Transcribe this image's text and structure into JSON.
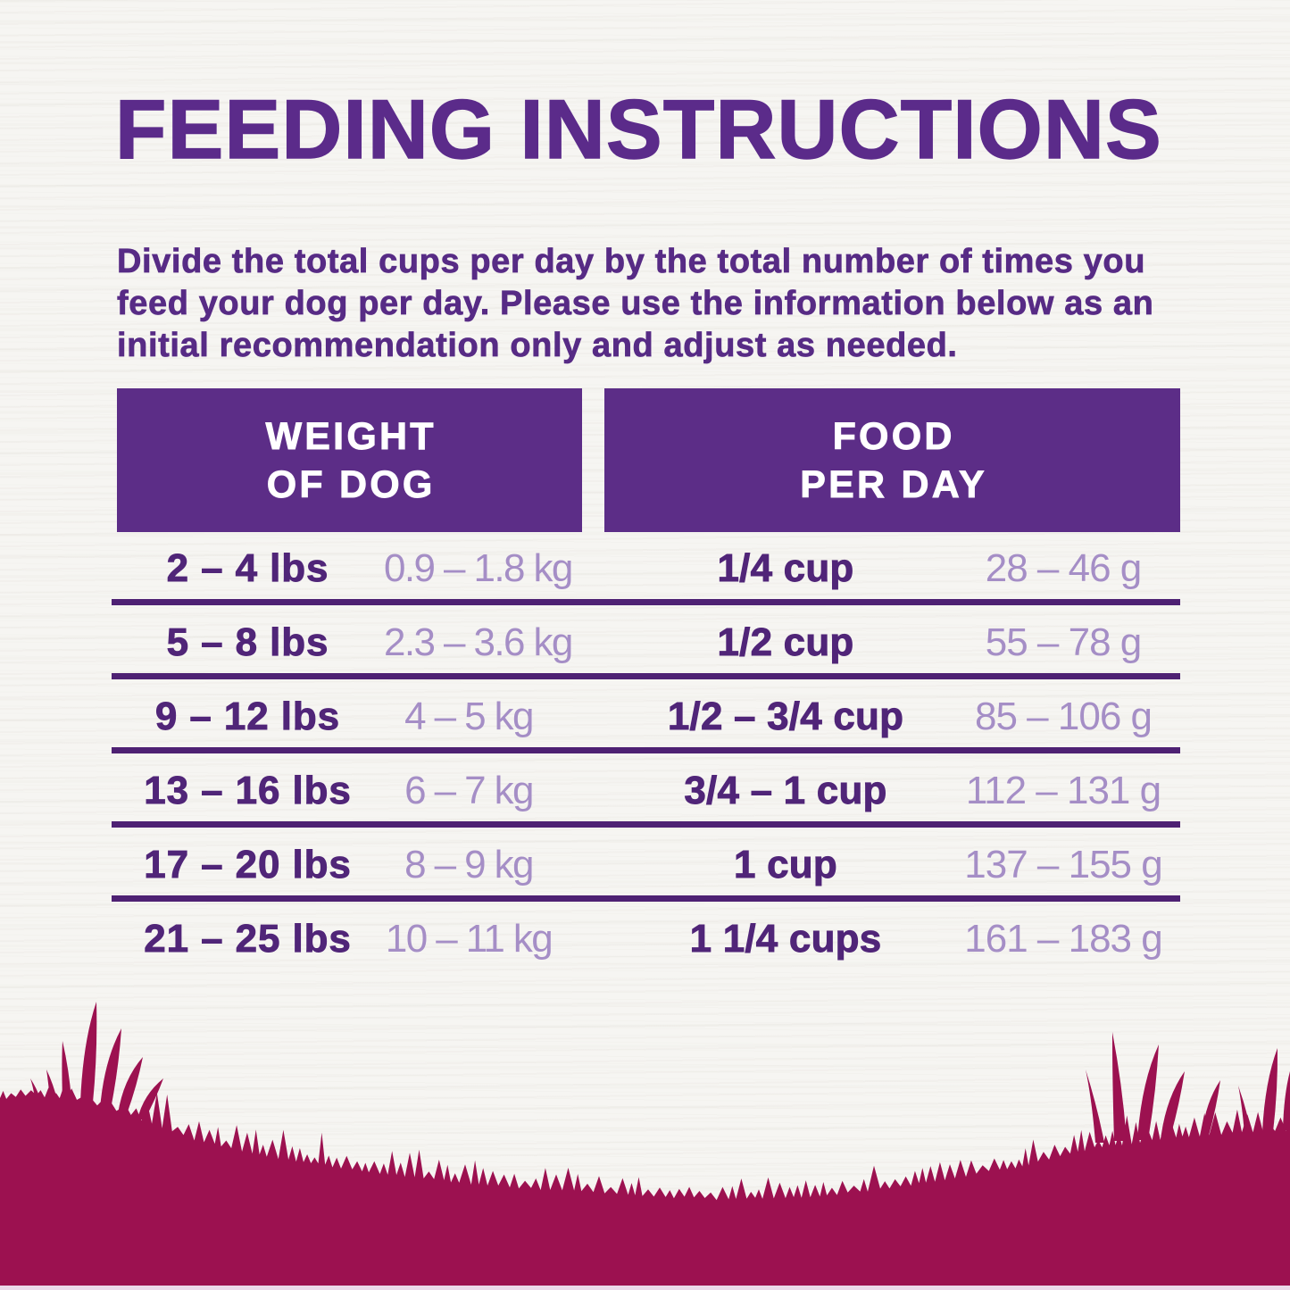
{
  "title": "FEEDING INSTRUCTIONS",
  "intro": {
    "line1": "Divide the total cups per day by the total number of times you",
    "line2": "feed your dog per day. Please use the information below as an",
    "line3": "initial recommendation only and adjust as needed."
  },
  "table": {
    "weight_header": {
      "line1": "WEIGHT",
      "line2": "OF DOG"
    },
    "food_header": {
      "line1": "FOOD",
      "line2": "PER DAY"
    },
    "rows": [
      {
        "lbs": "2 – 4 lbs",
        "kg": "0.9 – 1.8 kg",
        "cups": "1/4 cup",
        "grams": "28 – 46 g"
      },
      {
        "lbs": "5 – 8 lbs",
        "kg": "2.3 – 3.6 kg",
        "cups": "1/2 cup",
        "grams": "55 – 78 g"
      },
      {
        "lbs": "9 – 12 lbs",
        "kg": "4 – 5 kg",
        "cups": "1/2 – 3/4 cup",
        "grams": "85 – 106 g"
      },
      {
        "lbs": "13 – 16 lbs",
        "kg": "6 – 7 kg",
        "cups": "3/4 – 1 cup",
        "grams": "112 – 131 g"
      },
      {
        "lbs": "17 – 20 lbs",
        "kg": "8 – 9 kg",
        "cups": "1 cup",
        "grams": "137 – 155 g"
      },
      {
        "lbs": "21 – 25 lbs",
        "kg": "10 – 11 kg",
        "cups": "1 1/4 cups",
        "grams": "161 – 183 g"
      }
    ]
  },
  "colors": {
    "purple_dark": "#582c83",
    "purple_header_bg": "#5c2d87",
    "purple_light": "#a58ec6",
    "grass_maroon": "#9c1150",
    "background": "#f6f5f2"
  }
}
